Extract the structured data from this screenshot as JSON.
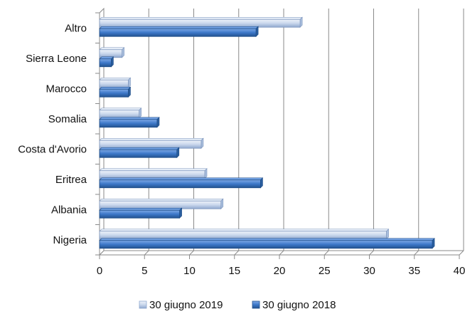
{
  "chart_data": {
    "type": "bar",
    "orientation": "horizontal",
    "style": "3d",
    "categories": [
      "Altro",
      "Sierra Leone",
      "Marocco",
      "Somalia",
      "Costa d'Avorio",
      "Eritrea",
      "Albania",
      "Nigeria"
    ],
    "series": [
      {
        "name": "30 giugno 2019",
        "values": [
          22.3,
          2.5,
          3.2,
          4.4,
          11.3,
          11.7,
          13.5,
          31.9
        ],
        "color": "#c9d7ec"
      },
      {
        "name": "30 giugno 2018",
        "values": [
          17.4,
          1.3,
          3.2,
          6.4,
          8.6,
          17.9,
          8.9,
          37.0
        ],
        "color": "#3d78c9"
      }
    ],
    "xlim": [
      0,
      40
    ],
    "xticks": [
      0,
      5,
      10,
      15,
      20,
      25,
      30,
      35,
      40
    ],
    "grid": "vertical",
    "legend_position": "bottom"
  }
}
